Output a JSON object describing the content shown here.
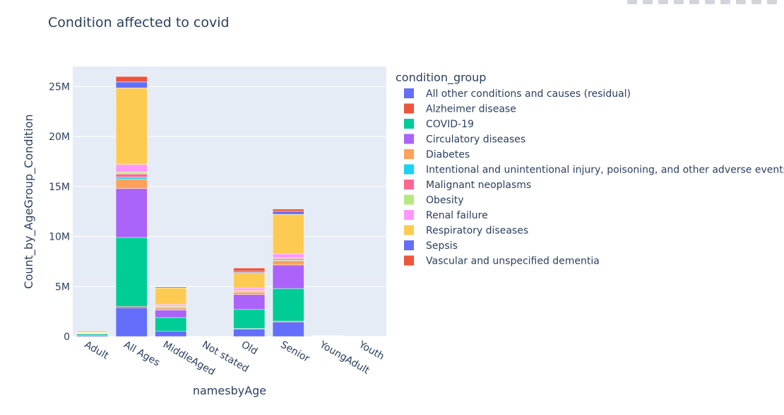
{
  "title": "Condition affected to covid",
  "modebar": {
    "buttons": [
      "camera-icon",
      "zoom-icon",
      "pan-icon",
      "select-icon",
      "lasso-icon",
      "zoom-in-icon",
      "zoom-out-icon",
      "autoscale-icon",
      "reset-icon",
      "plotly-logo-icon"
    ]
  },
  "chart_data": {
    "type": "bar",
    "barmode": "stack",
    "title": "Condition affected to covid",
    "xlabel": "namesbyAge",
    "ylabel": "Count_by_AgeGroup_Condition",
    "legend_title": "condition_group",
    "legend_position": "right",
    "grid": true,
    "ylim": [
      0,
      27000000
    ],
    "yticks": [
      0,
      5000000,
      10000000,
      15000000,
      20000000,
      25000000
    ],
    "ytick_labels": [
      "0",
      "5M",
      "10M",
      "15M",
      "20M",
      "25M"
    ],
    "categories": [
      "Adult",
      "All Ages",
      "MiddleAged",
      "Not stated",
      "Old",
      "Senior",
      "YoungAdult",
      "Youth"
    ],
    "series": [
      {
        "name": "All other conditions and causes (residual)",
        "color": "#636efa",
        "values": [
          100000,
          2850000,
          550000,
          0,
          750000,
          1450000,
          20000,
          5000
        ]
      },
      {
        "name": "Alzheimer disease",
        "color": "#ef553b",
        "values": [
          0,
          150000,
          0,
          0,
          50000,
          100000,
          0,
          0
        ]
      },
      {
        "name": "COVID-19",
        "color": "#00cc96",
        "values": [
          150000,
          6900000,
          1350000,
          0,
          1900000,
          3250000,
          30000,
          5000
        ]
      },
      {
        "name": "Circulatory diseases",
        "color": "#ab63fa",
        "values": [
          60000,
          4900000,
          750000,
          0,
          1500000,
          2350000,
          15000,
          3000
        ]
      },
      {
        "name": "Diabetes",
        "color": "#ffa15a",
        "values": [
          20000,
          950000,
          200000,
          0,
          250000,
          450000,
          5000,
          1000
        ]
      },
      {
        "name": "Intentional and unintentional injury, poisoning, and other adverse events",
        "color": "#19d3f3",
        "values": [
          15000,
          200000,
          60000,
          0,
          50000,
          60000,
          10000,
          3000
        ]
      },
      {
        "name": "Malignant neoplasms",
        "color": "#ff6692",
        "values": [
          20000,
          300000,
          80000,
          0,
          100000,
          150000,
          5000,
          1000
        ]
      },
      {
        "name": "Obesity",
        "color": "#b6e880",
        "values": [
          10000,
          200000,
          70000,
          0,
          50000,
          60000,
          3000,
          1000
        ]
      },
      {
        "name": "Renal failure",
        "color": "#ff97ff",
        "values": [
          20000,
          750000,
          150000,
          0,
          200000,
          400000,
          2000,
          1000
        ]
      },
      {
        "name": "Respiratory diseases",
        "color": "#fecb52",
        "values": [
          150000,
          7650000,
          1650000,
          0,
          1550000,
          3950000,
          5000,
          1000
        ]
      },
      {
        "name": "Sepsis",
        "color": "#636efa",
        "values": [
          5000,
          600000,
          100000,
          0,
          150000,
          300000,
          1000,
          500
        ]
      },
      {
        "name": "Vascular and unspecified dementia",
        "color": "#ef553b",
        "values": [
          0,
          550000,
          10000,
          0,
          300000,
          230000,
          0,
          0
        ]
      }
    ]
  }
}
